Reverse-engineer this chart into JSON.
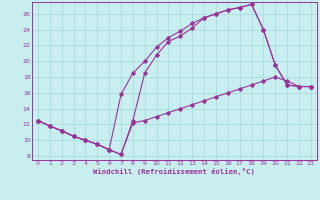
{
  "xlabel": "Windchill (Refroidissement éolien,°C)",
  "background_color": "#c8eef0",
  "grid_color": "#aadddd",
  "line_color": "#993399",
  "xlim": [
    -0.5,
    23.5
  ],
  "ylim": [
    7.5,
    27.5
  ],
  "xticks": [
    0,
    1,
    2,
    3,
    4,
    5,
    6,
    7,
    8,
    9,
    10,
    11,
    12,
    13,
    14,
    15,
    16,
    17,
    18,
    19,
    20,
    21,
    22,
    23
  ],
  "yticks": [
    8,
    10,
    12,
    14,
    16,
    18,
    20,
    22,
    24,
    26
  ],
  "line1_x": [
    0,
    1,
    2,
    3,
    4,
    5,
    6,
    7,
    8,
    9,
    10,
    11,
    12,
    13,
    14,
    15,
    16,
    17,
    18,
    19,
    20,
    21,
    22,
    23
  ],
  "line1_y": [
    12.5,
    11.8,
    11.2,
    10.5,
    10.0,
    9.5,
    8.8,
    8.2,
    12.5,
    18.5,
    20.8,
    22.5,
    23.2,
    24.2,
    25.5,
    26.0,
    26.5,
    26.8,
    27.2,
    24.0,
    19.5,
    17.0,
    16.8,
    16.8
  ],
  "line2_x": [
    0,
    1,
    2,
    3,
    4,
    5,
    6,
    7,
    8,
    9,
    10,
    11,
    12,
    13,
    14,
    15,
    16,
    17,
    18,
    19,
    20,
    21,
    22,
    23
  ],
  "line2_y": [
    12.5,
    11.8,
    11.2,
    10.5,
    10.0,
    9.5,
    8.8,
    15.8,
    18.5,
    20.0,
    21.8,
    23.0,
    23.8,
    24.8,
    25.5,
    26.0,
    26.5,
    26.8,
    27.2,
    24.0,
    19.5,
    17.0,
    16.8,
    16.8
  ],
  "line3_x": [
    0,
    1,
    2,
    3,
    4,
    5,
    6,
    7,
    8,
    9,
    10,
    11,
    12,
    13,
    14,
    15,
    16,
    17,
    18,
    19,
    20,
    21,
    22,
    23
  ],
  "line3_y": [
    12.5,
    11.8,
    11.2,
    10.5,
    10.0,
    9.5,
    8.8,
    8.2,
    12.2,
    12.5,
    13.0,
    13.5,
    14.0,
    14.5,
    15.0,
    15.5,
    16.0,
    16.5,
    17.0,
    17.5,
    18.0,
    17.5,
    16.8,
    16.8
  ]
}
